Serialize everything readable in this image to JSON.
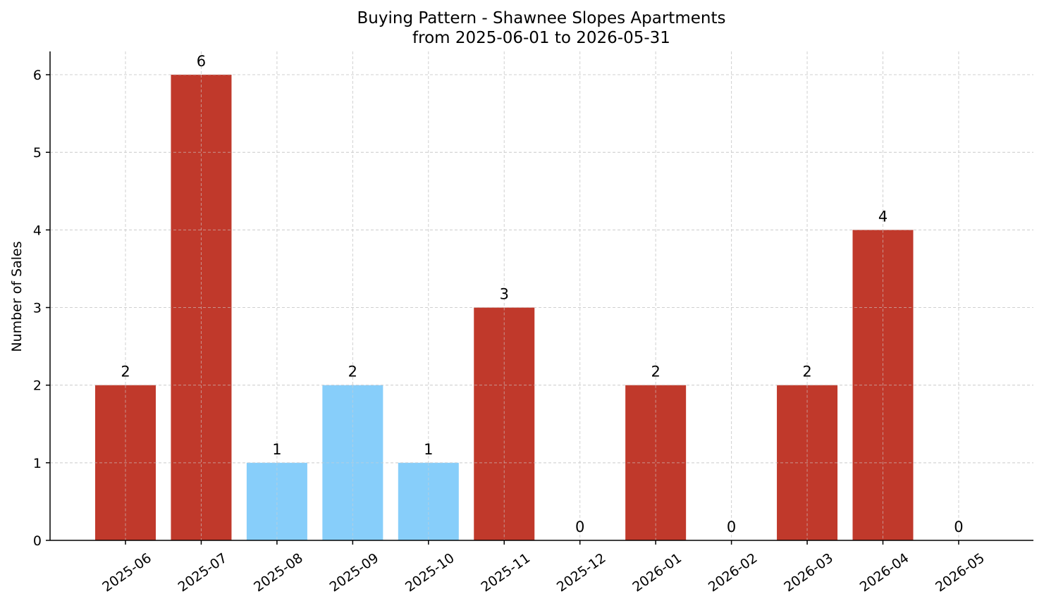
{
  "chart_data": {
    "type": "bar",
    "title": "Buying Pattern - Shawnee Slopes Apartments",
    "subtitle": "from 2025-06-01 to 2026-05-31",
    "xlabel": "",
    "ylabel": "Number of Sales",
    "categories": [
      "2025-06",
      "2025-07",
      "2025-08",
      "2025-09",
      "2025-10",
      "2025-11",
      "2025-12",
      "2026-01",
      "2026-02",
      "2026-03",
      "2026-04",
      "2026-05"
    ],
    "values": [
      2,
      6,
      1,
      2,
      1,
      3,
      0,
      2,
      0,
      2,
      4,
      0
    ],
    "bar_colors": [
      "#c0392b",
      "#c0392b",
      "#87cefa",
      "#87cefa",
      "#87cefa",
      "#c0392b",
      "#c0392b",
      "#c0392b",
      "#c0392b",
      "#c0392b",
      "#c0392b",
      "#c0392b"
    ],
    "ylim": [
      0,
      6.3
    ],
    "yticks": [
      0,
      1,
      2,
      3,
      4,
      5,
      6
    ],
    "grid": true,
    "legend": "none"
  }
}
